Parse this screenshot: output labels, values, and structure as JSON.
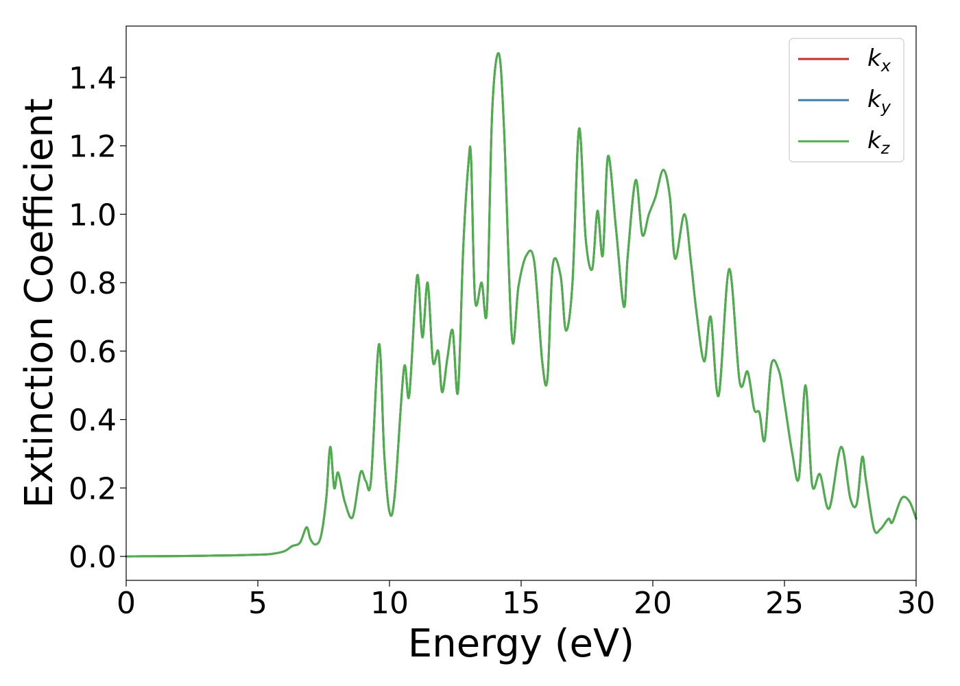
{
  "chart_data": {
    "type": "line",
    "xlabel": "Energy (eV)",
    "ylabel": "Extinction Coefficient",
    "xlim": [
      0,
      30
    ],
    "ylim": [
      -0.07,
      1.55
    ],
    "xticks": [
      0,
      5,
      10,
      15,
      20,
      25,
      30
    ],
    "xtick_labels": [
      "0",
      "5",
      "10",
      "15",
      "20",
      "25",
      "30"
    ],
    "yticks": [
      0.0,
      0.2,
      0.4,
      0.6,
      0.8,
      1.0,
      1.2,
      1.4
    ],
    "ytick_labels": [
      "0.0",
      "0.2",
      "0.4",
      "0.6",
      "0.8",
      "1.0",
      "1.2",
      "1.4"
    ],
    "grid": false,
    "legend": {
      "position": "top-right"
    },
    "series": [
      {
        "name_base": "k",
        "name_sub": "x",
        "color": "#d62728",
        "x": [
          0,
          1,
          2,
          3,
          4,
          5,
          5.5,
          6,
          6.3,
          6.6,
          6.85,
          7.0,
          7.2,
          7.4,
          7.6,
          7.75,
          7.9,
          8.05,
          8.3,
          8.6,
          8.9,
          9.1,
          9.3,
          9.6,
          9.8,
          10.0,
          10.2,
          10.55,
          10.75,
          11.05,
          11.25,
          11.45,
          11.65,
          11.85,
          12.0,
          12.2,
          12.4,
          12.6,
          12.8,
          13.0,
          13.1,
          13.25,
          13.5,
          13.7,
          13.9,
          14.15,
          14.35,
          14.65,
          14.9,
          15.2,
          15.5,
          15.8,
          16.0,
          16.2,
          16.5,
          16.7,
          16.95,
          17.2,
          17.45,
          17.7,
          17.9,
          18.1,
          18.3,
          18.6,
          18.9,
          19.05,
          19.35,
          19.6,
          19.85,
          20.1,
          20.4,
          20.65,
          20.85,
          21.2,
          21.45,
          21.65,
          21.95,
          22.2,
          22.5,
          22.9,
          23.3,
          23.6,
          23.85,
          24.05,
          24.25,
          24.5,
          24.8,
          25.0,
          25.3,
          25.55,
          25.8,
          26.05,
          26.35,
          26.7,
          27.15,
          27.5,
          27.75,
          27.95,
          28.1,
          28.4,
          28.65,
          28.95,
          29.1,
          29.45,
          29.75,
          30
        ],
        "values": [
          0.0,
          0.0005,
          0.001,
          0.002,
          0.003,
          0.005,
          0.007,
          0.015,
          0.03,
          0.04,
          0.085,
          0.05,
          0.035,
          0.06,
          0.17,
          0.32,
          0.2,
          0.245,
          0.16,
          0.115,
          0.245,
          0.22,
          0.225,
          0.62,
          0.3,
          0.13,
          0.18,
          0.55,
          0.47,
          0.82,
          0.64,
          0.8,
          0.57,
          0.6,
          0.48,
          0.58,
          0.66,
          0.48,
          0.9,
          1.15,
          1.16,
          0.75,
          0.8,
          0.72,
          1.3,
          1.47,
          1.25,
          0.64,
          0.79,
          0.88,
          0.86,
          0.57,
          0.52,
          0.85,
          0.82,
          0.66,
          0.8,
          1.25,
          0.93,
          0.84,
          1.01,
          0.88,
          1.17,
          0.96,
          0.73,
          0.88,
          1.1,
          0.94,
          1.0,
          1.05,
          1.13,
          1.05,
          0.87,
          1.0,
          0.86,
          0.72,
          0.57,
          0.7,
          0.47,
          0.84,
          0.51,
          0.54,
          0.43,
          0.42,
          0.34,
          0.56,
          0.54,
          0.45,
          0.3,
          0.23,
          0.5,
          0.21,
          0.24,
          0.14,
          0.32,
          0.17,
          0.155,
          0.29,
          0.22,
          0.08,
          0.08,
          0.11,
          0.1,
          0.17,
          0.16,
          0.11
        ]
      },
      {
        "name_base": "k",
        "name_sub": "y",
        "color": "#377eb8",
        "x": [
          0,
          1,
          2,
          3,
          4,
          5,
          5.5,
          6,
          6.3,
          6.6,
          6.85,
          7.0,
          7.2,
          7.4,
          7.6,
          7.75,
          7.9,
          8.05,
          8.3,
          8.6,
          8.9,
          9.1,
          9.3,
          9.6,
          9.8,
          10.0,
          10.2,
          10.55,
          10.75,
          11.05,
          11.25,
          11.45,
          11.65,
          11.85,
          12.0,
          12.2,
          12.4,
          12.6,
          12.8,
          13.0,
          13.1,
          13.25,
          13.5,
          13.7,
          13.9,
          14.15,
          14.35,
          14.65,
          14.9,
          15.2,
          15.5,
          15.8,
          16.0,
          16.2,
          16.5,
          16.7,
          16.95,
          17.2,
          17.45,
          17.7,
          17.9,
          18.1,
          18.3,
          18.6,
          18.9,
          19.05,
          19.35,
          19.6,
          19.85,
          20.1,
          20.4,
          20.65,
          20.85,
          21.2,
          21.45,
          21.65,
          21.95,
          22.2,
          22.5,
          22.9,
          23.3,
          23.6,
          23.85,
          24.05,
          24.25,
          24.5,
          24.8,
          25.0,
          25.3,
          25.55,
          25.8,
          26.05,
          26.35,
          26.7,
          27.15,
          27.5,
          27.75,
          27.95,
          28.1,
          28.4,
          28.65,
          28.95,
          29.1,
          29.45,
          29.75,
          30
        ],
        "values": [
          0.0,
          0.0005,
          0.001,
          0.002,
          0.003,
          0.005,
          0.007,
          0.015,
          0.03,
          0.04,
          0.085,
          0.05,
          0.035,
          0.06,
          0.17,
          0.32,
          0.2,
          0.245,
          0.16,
          0.115,
          0.245,
          0.22,
          0.225,
          0.62,
          0.3,
          0.13,
          0.18,
          0.55,
          0.47,
          0.82,
          0.64,
          0.8,
          0.57,
          0.6,
          0.48,
          0.58,
          0.66,
          0.48,
          0.9,
          1.15,
          1.16,
          0.75,
          0.8,
          0.72,
          1.3,
          1.47,
          1.25,
          0.64,
          0.79,
          0.88,
          0.86,
          0.57,
          0.52,
          0.85,
          0.82,
          0.66,
          0.8,
          1.25,
          0.93,
          0.84,
          1.01,
          0.88,
          1.17,
          0.96,
          0.73,
          0.88,
          1.1,
          0.94,
          1.0,
          1.05,
          1.13,
          1.05,
          0.87,
          1.0,
          0.86,
          0.72,
          0.57,
          0.7,
          0.47,
          0.84,
          0.51,
          0.54,
          0.43,
          0.42,
          0.34,
          0.56,
          0.54,
          0.45,
          0.3,
          0.23,
          0.5,
          0.21,
          0.24,
          0.14,
          0.32,
          0.17,
          0.155,
          0.29,
          0.22,
          0.08,
          0.08,
          0.11,
          0.1,
          0.17,
          0.16,
          0.11
        ]
      },
      {
        "name_base": "k",
        "name_sub": "z",
        "color": "#4daf4a",
        "x": [
          0,
          1,
          2,
          3,
          4,
          5,
          5.5,
          6,
          6.3,
          6.6,
          6.85,
          7.0,
          7.2,
          7.4,
          7.6,
          7.75,
          7.9,
          8.05,
          8.3,
          8.6,
          8.9,
          9.1,
          9.3,
          9.6,
          9.8,
          10.0,
          10.2,
          10.55,
          10.75,
          11.05,
          11.25,
          11.45,
          11.65,
          11.85,
          12.0,
          12.2,
          12.4,
          12.6,
          12.8,
          13.0,
          13.1,
          13.25,
          13.5,
          13.7,
          13.9,
          14.15,
          14.35,
          14.65,
          14.9,
          15.2,
          15.5,
          15.8,
          16.0,
          16.2,
          16.5,
          16.7,
          16.95,
          17.2,
          17.45,
          17.7,
          17.9,
          18.1,
          18.3,
          18.6,
          18.9,
          19.05,
          19.35,
          19.6,
          19.85,
          20.1,
          20.4,
          20.65,
          20.85,
          21.2,
          21.45,
          21.65,
          21.95,
          22.2,
          22.5,
          22.9,
          23.3,
          23.6,
          23.85,
          24.05,
          24.25,
          24.5,
          24.8,
          25.0,
          25.3,
          25.55,
          25.8,
          26.05,
          26.35,
          26.7,
          27.15,
          27.5,
          27.75,
          27.95,
          28.1,
          28.4,
          28.65,
          28.95,
          29.1,
          29.45,
          29.75,
          30
        ],
        "values": [
          0.0,
          0.0005,
          0.001,
          0.002,
          0.003,
          0.005,
          0.007,
          0.015,
          0.03,
          0.04,
          0.085,
          0.05,
          0.035,
          0.06,
          0.17,
          0.32,
          0.2,
          0.245,
          0.16,
          0.115,
          0.245,
          0.22,
          0.225,
          0.62,
          0.3,
          0.13,
          0.18,
          0.55,
          0.47,
          0.82,
          0.64,
          0.8,
          0.57,
          0.6,
          0.48,
          0.58,
          0.66,
          0.48,
          0.9,
          1.15,
          1.16,
          0.75,
          0.8,
          0.72,
          1.3,
          1.47,
          1.25,
          0.64,
          0.79,
          0.88,
          0.86,
          0.57,
          0.52,
          0.85,
          0.82,
          0.66,
          0.8,
          1.25,
          0.93,
          0.84,
          1.01,
          0.88,
          1.17,
          0.96,
          0.73,
          0.88,
          1.1,
          0.94,
          1.0,
          1.05,
          1.13,
          1.05,
          0.87,
          1.0,
          0.86,
          0.72,
          0.57,
          0.7,
          0.47,
          0.84,
          0.51,
          0.54,
          0.43,
          0.42,
          0.34,
          0.56,
          0.54,
          0.45,
          0.3,
          0.23,
          0.5,
          0.21,
          0.24,
          0.14,
          0.32,
          0.17,
          0.155,
          0.29,
          0.22,
          0.08,
          0.08,
          0.11,
          0.1,
          0.17,
          0.16,
          0.11
        ]
      }
    ]
  }
}
